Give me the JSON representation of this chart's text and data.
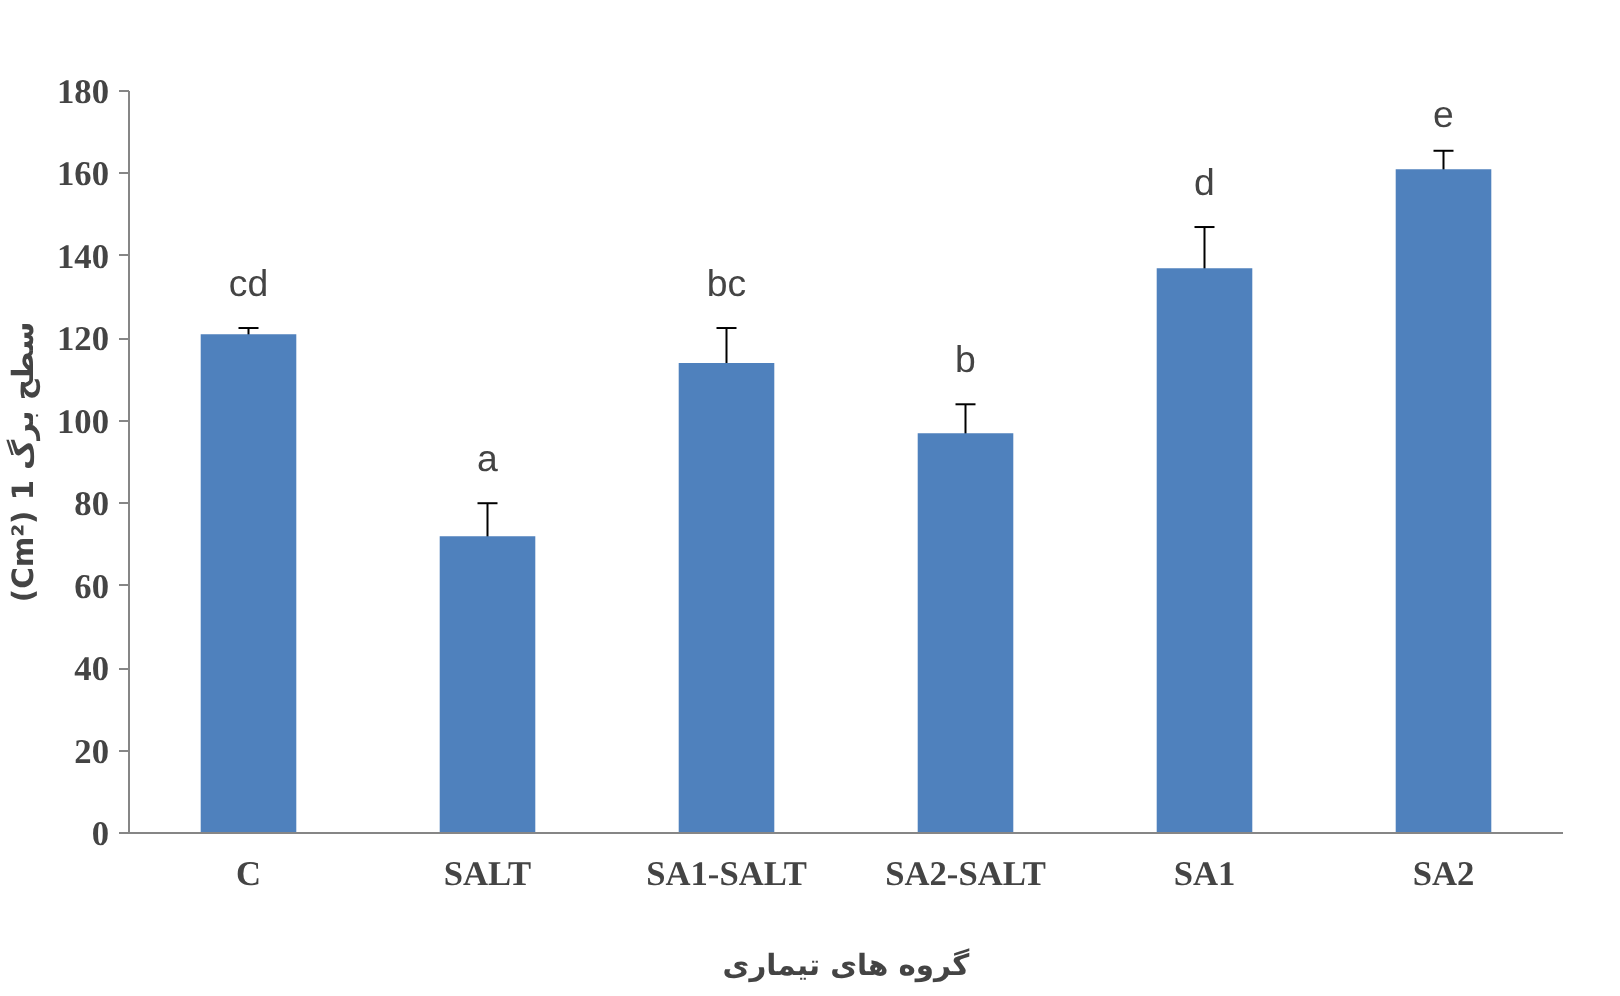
{
  "chart_data": {
    "type": "bar",
    "xlabel": "گروه های تیماری",
    "ylabel": "(Cm²) 1 سطح برگ",
    "categories": [
      "C",
      "SALT",
      "SA1-SALT",
      "SA2-SALT",
      "SA1",
      "SA2"
    ],
    "values": [
      121,
      72,
      114,
      97,
      137,
      161
    ],
    "errors": [
      1.5,
      8,
      8.5,
      7,
      10,
      4.5
    ],
    "color": "#4f81bd",
    "ylim": [
      0,
      180
    ],
    "yticks": [
      0,
      20,
      40,
      60,
      80,
      100,
      120,
      140,
      160,
      180
    ],
    "grid": false,
    "annotations": [
      "cd",
      "a",
      "bc",
      "b",
      "d",
      "e"
    ]
  }
}
